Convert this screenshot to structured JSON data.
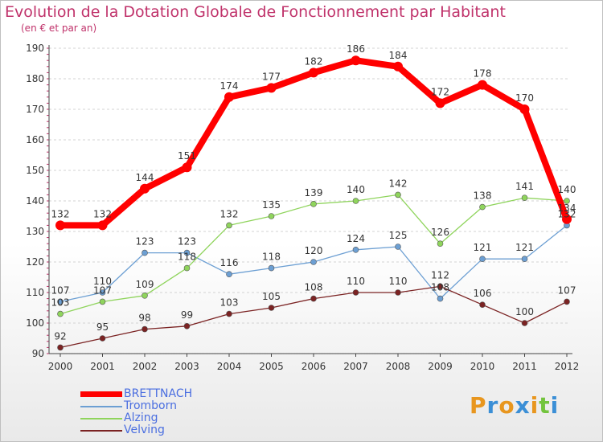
{
  "title": "Evolution de la Dotation Globale de Fonctionnement par Habitant",
  "subtitle": "(en € et par an)",
  "brand": {
    "letters": [
      "P",
      "r",
      "o",
      "x",
      "i",
      "t",
      "i"
    ],
    "colors": [
      "#e8961e",
      "#3b8fd6",
      "#e8961e",
      "#3b8fd6",
      "#e8961e",
      "#73c43d",
      "#3b8fd6"
    ]
  },
  "chart_data": {
    "type": "line",
    "title": "Evolution de la Dotation Globale de Fonctionnement par Habitant",
    "subtitle": "(en € et par an)",
    "xlabel": "",
    "ylabel": "",
    "x": [
      "2000",
      "2001",
      "2002",
      "2003",
      "2004",
      "2005",
      "2006",
      "2007",
      "2008",
      "2009",
      "2010",
      "2011",
      "2012"
    ],
    "ylim": [
      90,
      190
    ],
    "yticks": [
      "90",
      "100",
      "110",
      "120",
      "130",
      "140",
      "150",
      "160",
      "170",
      "180",
      "190"
    ],
    "grid": "horizontal",
    "legend_position": "bottom-left",
    "series": [
      {
        "name": "BRETTNACH",
        "color": "#ff0000",
        "values": [
          132,
          132,
          144,
          151,
          174,
          177,
          182,
          186,
          184,
          172,
          178,
          170,
          134
        ],
        "labels": [
          "132",
          "132",
          "144",
          "151",
          "174",
          "177",
          "182",
          "186",
          "184",
          "172",
          "178",
          "170",
          "134"
        ]
      },
      {
        "name": "Tromborn",
        "color": "#6c9fd3",
        "values": [
          107,
          110,
          123,
          123,
          116,
          118,
          120,
          124,
          125,
          108,
          121,
          121,
          132
        ],
        "labels": [
          "107",
          "110",
          "123",
          "123",
          "116",
          "118",
          "120",
          "124",
          "125",
          "108",
          "121",
          "121",
          "132"
        ]
      },
      {
        "name": "Alzing",
        "color": "#8fd45c",
        "values": [
          103,
          107,
          109,
          118,
          132,
          135,
          139,
          140,
          142,
          126,
          138,
          141,
          140
        ],
        "labels": [
          "103",
          "107",
          "109",
          "118",
          "132",
          "135",
          "139",
          "140",
          "142",
          "126",
          "138",
          "141",
          "140"
        ]
      },
      {
        "name": "Velving",
        "color": "#7b2323",
        "values": [
          92,
          95,
          98,
          99,
          103,
          105,
          108,
          110,
          110,
          112,
          106,
          100,
          107
        ],
        "labels": [
          "92",
          "95",
          "98",
          "99",
          "103",
          "105",
          "108",
          "110",
          "110",
          "112",
          "106",
          "100",
          "107"
        ]
      }
    ]
  }
}
